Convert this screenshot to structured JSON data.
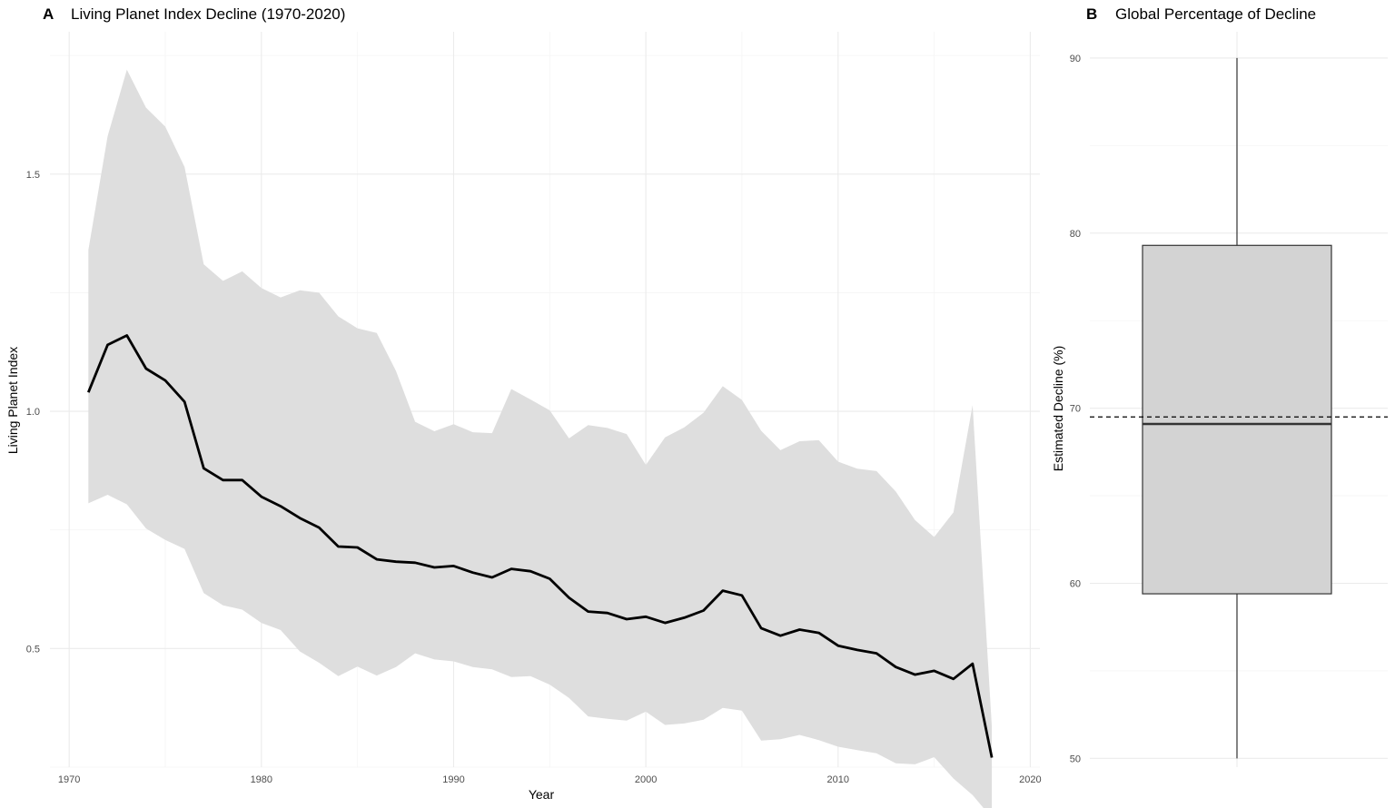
{
  "chart_data": [
    {
      "panel": "A",
      "type": "line",
      "title": "Living Planet Index Decline (1970-2020)",
      "xlabel": "Year",
      "ylabel": "Living Planet Index",
      "xlim": [
        1969,
        2020.5
      ],
      "ylim": [
        0.25,
        1.8
      ],
      "xticks": [
        1970,
        1980,
        1990,
        2000,
        2010,
        2020
      ],
      "yticks": [
        0.5,
        1.0,
        1.5
      ],
      "ytick_labels": [
        "0.5",
        "1.0",
        "1.5"
      ],
      "grid": true,
      "legend": "none",
      "series": [
        {
          "x": [
            1971,
            1972,
            1973,
            1974,
            1975,
            1976,
            1977,
            1978,
            1979,
            1980,
            1981,
            1982,
            1983,
            1984,
            1985,
            1986,
            1987,
            1988,
            1989,
            1990,
            1991,
            1992,
            1993,
            1994,
            1995,
            1996,
            1997,
            1998,
            1999,
            2000,
            2001,
            2002,
            2003,
            2004,
            2005,
            2006,
            2007,
            2008,
            2009,
            2010,
            2011,
            2012,
            2013,
            2014,
            2015,
            2016,
            2017,
            2018
          ],
          "values": [
            1.04,
            1.14,
            1.16,
            1.09,
            1.065,
            1.02,
            0.88,
            0.855,
            0.855,
            0.82,
            0.8,
            0.775,
            0.755,
            0.715,
            0.713,
            0.688,
            0.683,
            0.681,
            0.671,
            0.674,
            0.66,
            0.65,
            0.668,
            0.663,
            0.647,
            0.607,
            0.578,
            0.575,
            0.562,
            0.567,
            0.554,
            0.565,
            0.58,
            0.622,
            0.612,
            0.543,
            0.527,
            0.54,
            0.533,
            0.506,
            0.497,
            0.49,
            0.461,
            0.445,
            0.453,
            0.436,
            0.468,
            0.27
          ],
          "lower": [
            0.806,
            0.824,
            0.804,
            0.753,
            0.729,
            0.71,
            0.617,
            0.591,
            0.582,
            0.554,
            0.539,
            0.494,
            0.47,
            0.442,
            0.462,
            0.443,
            0.461,
            0.49,
            0.477,
            0.473,
            0.461,
            0.456,
            0.44,
            0.442,
            0.424,
            0.396,
            0.357,
            0.352,
            0.348,
            0.367,
            0.339,
            0.342,
            0.35,
            0.375,
            0.369,
            0.306,
            0.309,
            0.318,
            0.307,
            0.293,
            0.286,
            0.279,
            0.258,
            0.256,
            0.271,
            0.226,
            0.191,
            0.143
          ],
          "upper": [
            1.34,
            1.58,
            1.72,
            1.64,
            1.6,
            1.515,
            1.31,
            1.275,
            1.295,
            1.26,
            1.24,
            1.255,
            1.25,
            1.2,
            1.175,
            1.165,
            1.085,
            0.978,
            0.958,
            0.973,
            0.956,
            0.954,
            1.047,
            1.025,
            1.002,
            0.943,
            0.971,
            0.965,
            0.952,
            0.887,
            0.945,
            0.966,
            0.997,
            1.053,
            1.024,
            0.959,
            0.918,
            0.937,
            0.939,
            0.894,
            0.879,
            0.874,
            0.831,
            0.771,
            0.735,
            0.787,
            1.013,
            0.335
          ],
          "line_color": "#000000",
          "band_color": "#dedede"
        }
      ]
    },
    {
      "panel": "B",
      "type": "box",
      "title": "Global Percentage of Decline",
      "xlabel": "",
      "ylabel": "Estimated Decline (%)",
      "ylim": [
        49.5,
        91.5
      ],
      "yticks": [
        50,
        60,
        70,
        80,
        90
      ],
      "grid": true,
      "legend": "none",
      "box": {
        "min": 50,
        "q1": 59.4,
        "median": 69.1,
        "q3": 79.3,
        "max": 90,
        "fill": "#d3d3d3",
        "stroke": "#333333"
      },
      "reference_line": {
        "value": 69.5,
        "style": "dashed"
      }
    }
  ]
}
